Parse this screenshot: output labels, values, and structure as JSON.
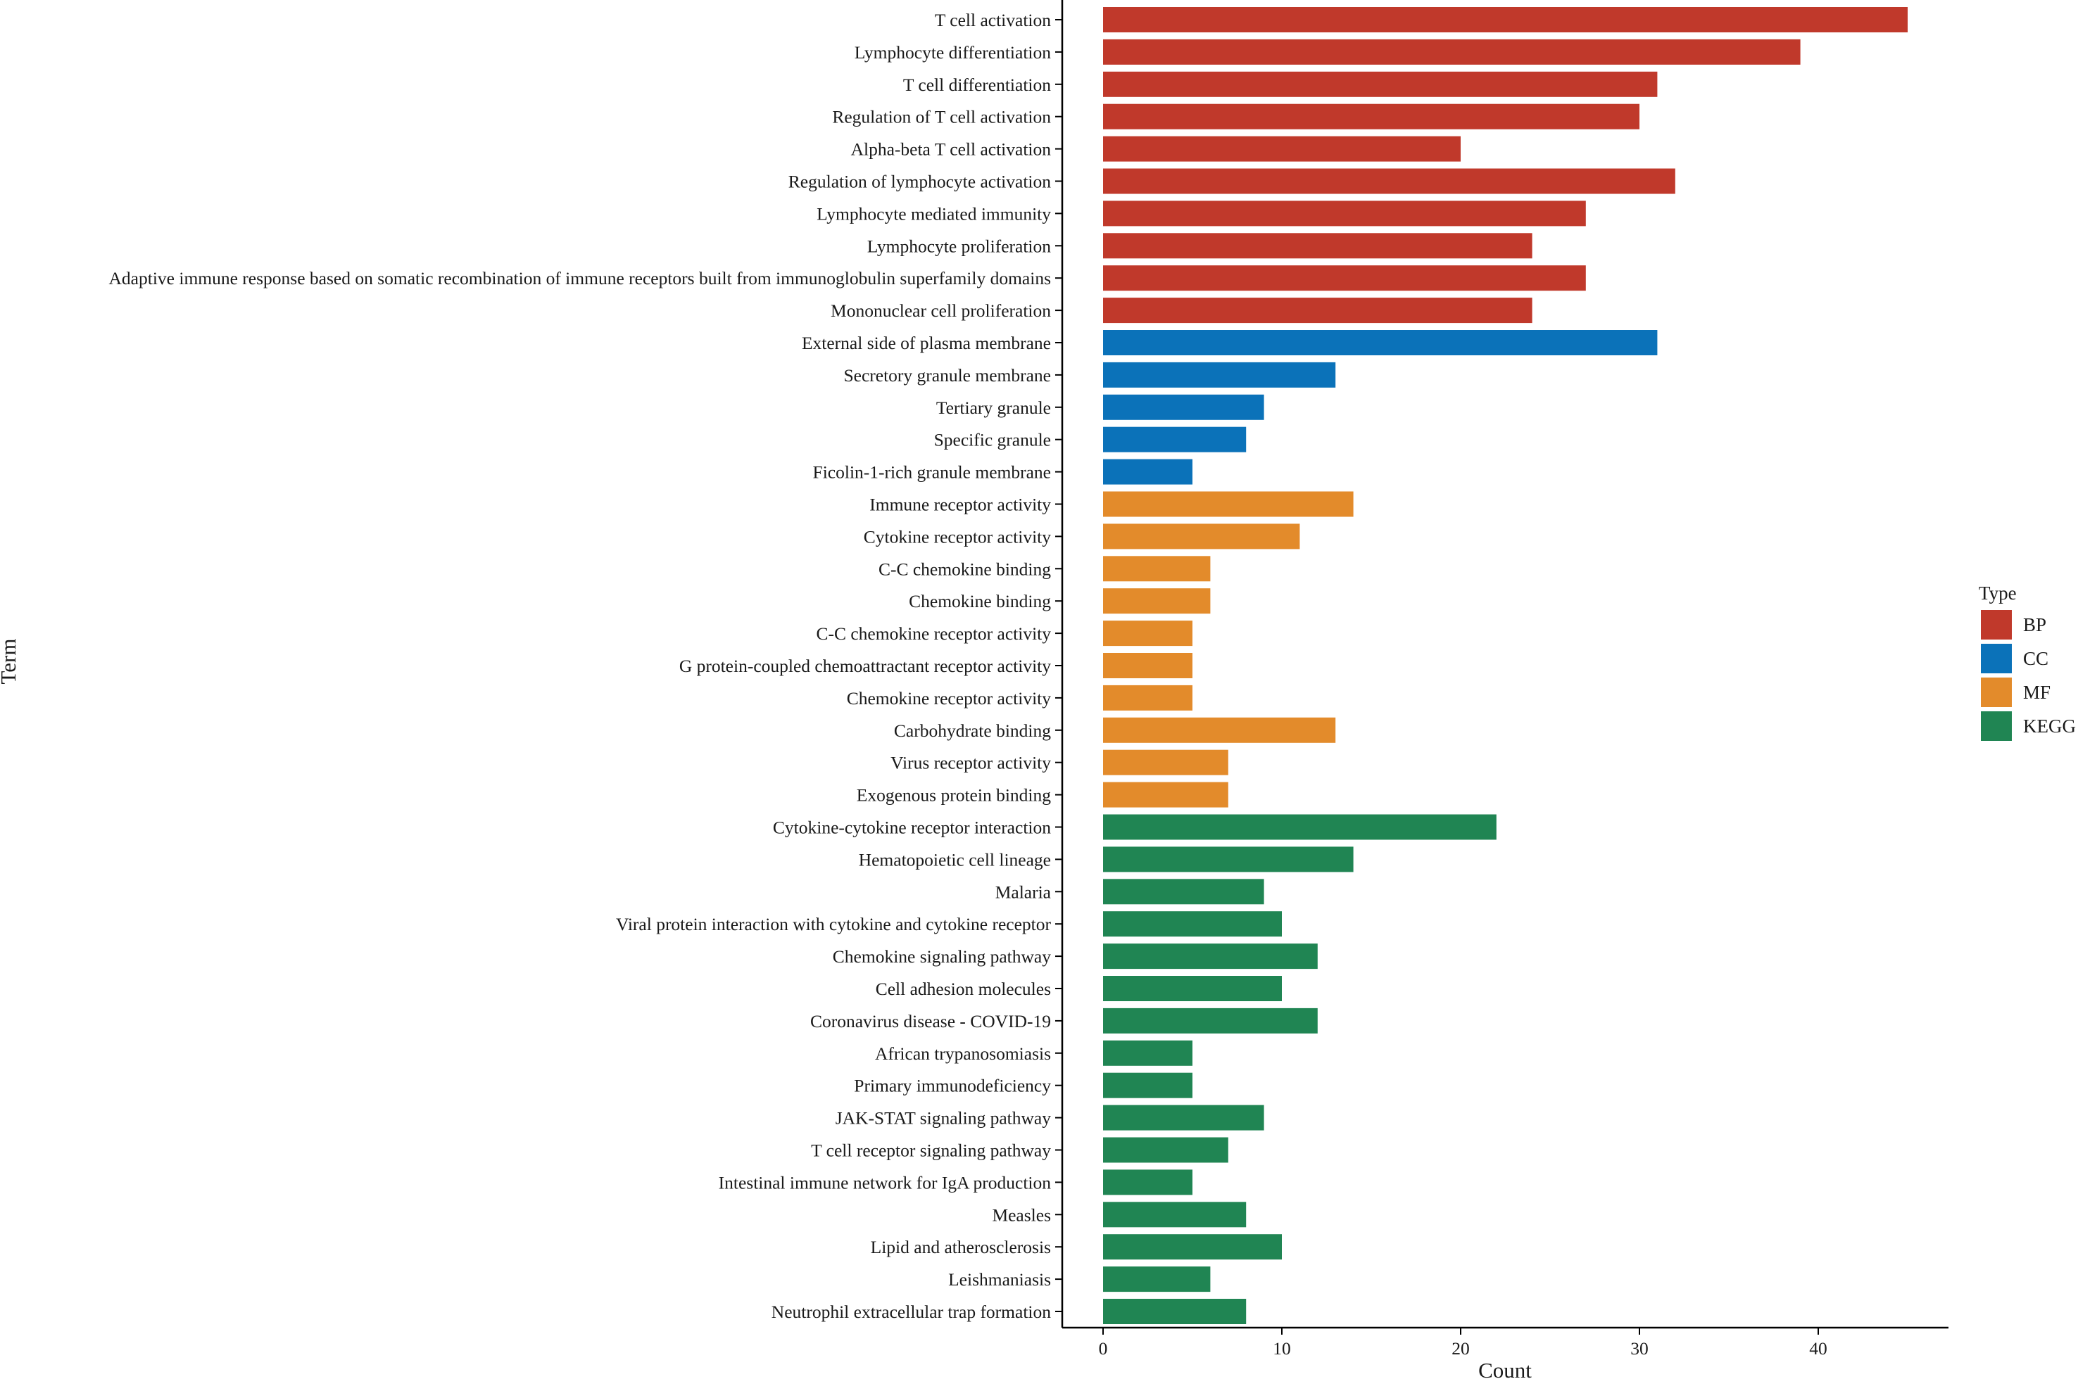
{
  "chart_data": {
    "type": "bar",
    "orientation": "horizontal",
    "xlabel": "Count",
    "ylabel": "Term",
    "xlim": [
      -2.3,
      47.2
    ],
    "xticks": [
      0,
      10,
      20,
      30,
      40
    ],
    "xtick_labels": [
      "0",
      "10",
      "20",
      "30",
      "40"
    ],
    "grid": false,
    "legend": {
      "title": "Type",
      "placement": "right",
      "entries": [
        {
          "key": "BP",
          "label": "BP",
          "color": "#C0392B"
        },
        {
          "key": "CC",
          "label": "CC",
          "color": "#0B72B9"
        },
        {
          "key": "MF",
          "label": "MF",
          "color": "#E38B2B"
        },
        {
          "key": "KEGG",
          "label": "KEGG",
          "color": "#208553"
        }
      ]
    },
    "bars": [
      {
        "term": "T cell activation",
        "value": 45,
        "type": "BP"
      },
      {
        "term": "Lymphocyte differentiation",
        "value": 39,
        "type": "BP"
      },
      {
        "term": "T cell differentiation",
        "value": 31,
        "type": "BP"
      },
      {
        "term": "Regulation of T cell activation",
        "value": 30,
        "type": "BP"
      },
      {
        "term": "Alpha-beta T cell activation",
        "value": 20,
        "type": "BP"
      },
      {
        "term": "Regulation of lymphocyte activation",
        "value": 32,
        "type": "BP"
      },
      {
        "term": "Lymphocyte mediated immunity",
        "value": 27,
        "type": "BP"
      },
      {
        "term": "Lymphocyte proliferation",
        "value": 24,
        "type": "BP"
      },
      {
        "term": "Adaptive immune response based on somatic recombination of immune receptors built from immunoglobulin superfamily domains",
        "value": 27,
        "type": "BP"
      },
      {
        "term": "Mononuclear cell proliferation",
        "value": 24,
        "type": "BP"
      },
      {
        "term": "External side of plasma membrane",
        "value": 31,
        "type": "CC"
      },
      {
        "term": "Secretory granule membrane",
        "value": 13,
        "type": "CC"
      },
      {
        "term": "Tertiary granule",
        "value": 9,
        "type": "CC"
      },
      {
        "term": "Specific granule",
        "value": 8,
        "type": "CC"
      },
      {
        "term": "Ficolin-1-rich granule membrane",
        "value": 5,
        "type": "CC"
      },
      {
        "term": "Immune receptor activity",
        "value": 14,
        "type": "MF"
      },
      {
        "term": "Cytokine receptor activity",
        "value": 11,
        "type": "MF"
      },
      {
        "term": "C-C chemokine binding",
        "value": 6,
        "type": "MF"
      },
      {
        "term": "Chemokine binding",
        "value": 6,
        "type": "MF"
      },
      {
        "term": "C-C chemokine receptor activity",
        "value": 5,
        "type": "MF"
      },
      {
        "term": "G protein-coupled chemoattractant receptor activity",
        "value": 5,
        "type": "MF"
      },
      {
        "term": "Chemokine receptor activity",
        "value": 5,
        "type": "MF"
      },
      {
        "term": "Carbohydrate binding",
        "value": 13,
        "type": "MF"
      },
      {
        "term": "Virus receptor activity",
        "value": 7,
        "type": "MF"
      },
      {
        "term": "Exogenous protein binding",
        "value": 7,
        "type": "MF"
      },
      {
        "term": "Cytokine-cytokine receptor interaction",
        "value": 22,
        "type": "KEGG"
      },
      {
        "term": "Hematopoietic cell lineage",
        "value": 14,
        "type": "KEGG"
      },
      {
        "term": "Malaria",
        "value": 9,
        "type": "KEGG"
      },
      {
        "term": "Viral protein interaction with cytokine and cytokine receptor",
        "value": 10,
        "type": "KEGG"
      },
      {
        "term": "Chemokine signaling pathway",
        "value": 12,
        "type": "KEGG"
      },
      {
        "term": "Cell adhesion molecules",
        "value": 10,
        "type": "KEGG"
      },
      {
        "term": "Coronavirus disease - COVID-19",
        "value": 12,
        "type": "KEGG"
      },
      {
        "term": "African trypanosomiasis",
        "value": 5,
        "type": "KEGG"
      },
      {
        "term": "Primary immunodeficiency",
        "value": 5,
        "type": "KEGG"
      },
      {
        "term": "JAK-STAT signaling pathway",
        "value": 9,
        "type": "KEGG"
      },
      {
        "term": "T cell receptor signaling pathway",
        "value": 7,
        "type": "KEGG"
      },
      {
        "term": "Intestinal immune network for IgA production",
        "value": 5,
        "type": "KEGG"
      },
      {
        "term": "Measles",
        "value": 8,
        "type": "KEGG"
      },
      {
        "term": "Lipid and atherosclerosis",
        "value": 10,
        "type": "KEGG"
      },
      {
        "term": "Leishmaniasis",
        "value": 6,
        "type": "KEGG"
      },
      {
        "term": "Neutrophil extracellular trap formation",
        "value": 8,
        "type": "KEGG"
      }
    ]
  }
}
